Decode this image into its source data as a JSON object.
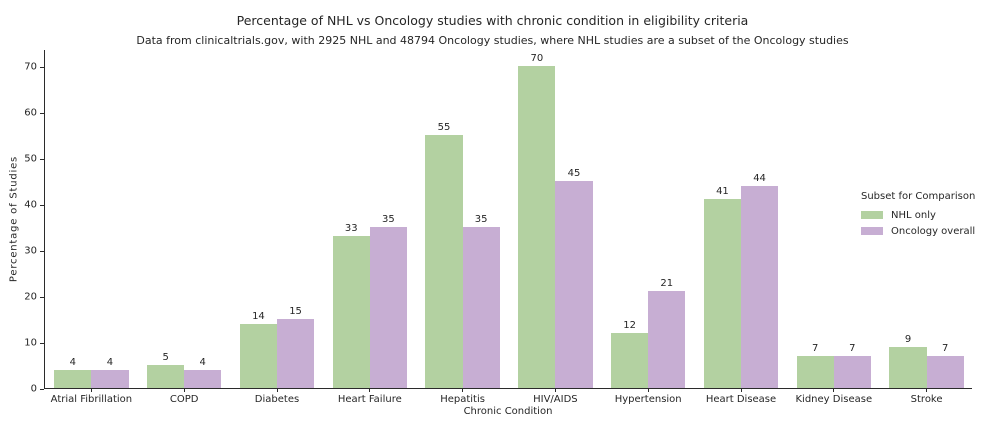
{
  "chart_data": {
    "type": "bar",
    "title": "Percentage of NHL vs Oncology studies with chronic condition in eligibility criteria",
    "subtitle": "Data from clinicaltrials.gov, with 2925 NHL and 48794 Oncology studies, where NHL studies are a subset of the Oncology studies",
    "categories": [
      "Atrial Fibrillation",
      "COPD",
      "Diabetes",
      "Heart Failure",
      "Hepatitis",
      "HIV/AIDS",
      "Hypertension",
      "Heart Disease",
      "Kidney Disease",
      "Stroke"
    ],
    "series": [
      {
        "name": "NHL only",
        "color": "#b3d1a1",
        "values": [
          4,
          5,
          14,
          33,
          55,
          70,
          12,
          41,
          7,
          9
        ]
      },
      {
        "name": "Oncology overall",
        "color": "#c7aed3",
        "values": [
          4,
          4,
          15,
          35,
          35,
          45,
          21,
          44,
          7,
          7
        ]
      }
    ],
    "xlabel": "Chronic Condition",
    "ylabel": "Percentage of Studies",
    "yticks": [
      0,
      10,
      20,
      30,
      40,
      50,
      60,
      70
    ],
    "ylim": [
      0,
      73.7
    ],
    "grid": false,
    "legend": {
      "title": "Subset for Comparison",
      "position": "center right"
    },
    "bar_labels_shown": true,
    "colors": {
      "axis": "#2b2b2b",
      "text": "#262626",
      "background": "#ffffff"
    }
  }
}
